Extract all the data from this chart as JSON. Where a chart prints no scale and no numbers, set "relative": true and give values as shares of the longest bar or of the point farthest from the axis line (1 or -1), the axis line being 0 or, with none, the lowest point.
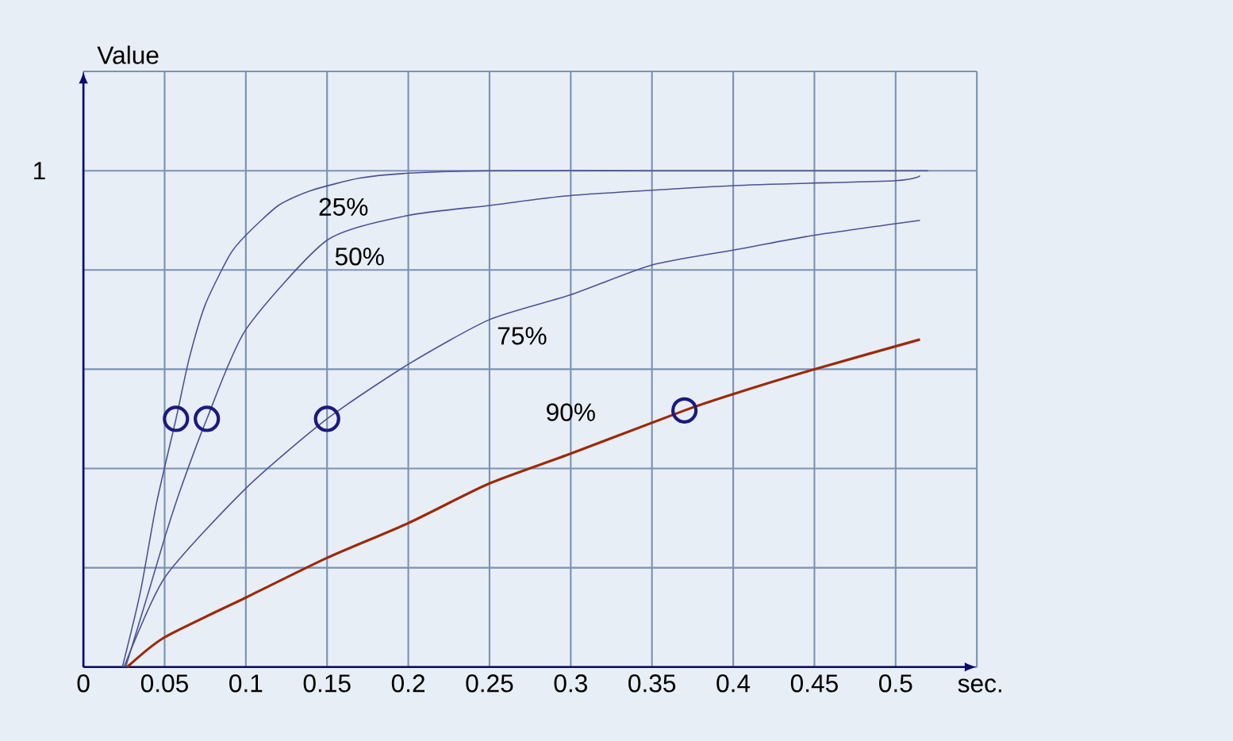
{
  "chart_data": {
    "type": "line",
    "xlabel": "sec.",
    "ylabel": "Value",
    "relative": true,
    "grid": true,
    "marker": "none",
    "line_style": "solid",
    "xlim": [
      0,
      0.55
    ],
    "xticks": [
      0,
      0.05,
      0.1,
      0.15,
      0.2,
      0.25,
      0.3,
      0.35,
      0.4,
      0.45,
      0.5,
      {
        "value": 0.55,
        "label": null
      }
    ],
    "annotations": [
      "1"
    ],
    "series": [
      {
        "name": "25%",
        "color": "#4a5296",
        "x": [
          0.024,
          0.035,
          0.045,
          0.057,
          0.065,
          0.075,
          0.09,
          0.1,
          0.12,
          0.14,
          0.17,
          0.2,
          0.25,
          0.35,
          0.45,
          0.52
        ],
        "values": [
          0,
          0.15,
          0.33,
          0.5,
          0.62,
          0.73,
          0.83,
          0.87,
          0.93,
          0.96,
          0.985,
          0.995,
          1.0,
          1.0,
          1.0,
          1.0
        ]
      },
      {
        "name": "50%",
        "color": "#4a5296",
        "x": [
          0.026,
          0.04,
          0.05,
          0.06,
          0.076,
          0.1,
          0.15,
          0.2,
          0.25,
          0.3,
          0.4,
          0.5,
          0.515
        ],
        "values": [
          0,
          0.15,
          0.26,
          0.36,
          0.5,
          0.68,
          0.86,
          0.91,
          0.93,
          0.95,
          0.97,
          0.98,
          0.99
        ]
      },
      {
        "name": "75%",
        "color": "#4a5296",
        "x": [
          0.025,
          0.05,
          0.1,
          0.15,
          0.2,
          0.25,
          0.3,
          0.35,
          0.4,
          0.45,
          0.515
        ],
        "values": [
          0,
          0.18,
          0.36,
          0.5,
          0.61,
          0.7,
          0.75,
          0.81,
          0.84,
          0.87,
          0.9
        ]
      },
      {
        "name": "90%",
        "color": "#9b2a0a",
        "x": [
          0.027,
          0.05,
          0.1,
          0.15,
          0.2,
          0.25,
          0.3,
          0.37,
          0.4,
          0.45,
          0.515
        ],
        "values": [
          0,
          0.06,
          0.14,
          0.22,
          0.29,
          0.37,
          0.43,
          0.517,
          0.55,
          0.6,
          0.66
        ]
      },
      {
        "type": "scatter",
        "marker": "circle",
        "color": "#1a1a80",
        "x": [
          0.057,
          0.076,
          0.15,
          0.37
        ],
        "values": [
          0.5,
          0.5,
          0.5,
          0.517
        ]
      }
    ]
  }
}
